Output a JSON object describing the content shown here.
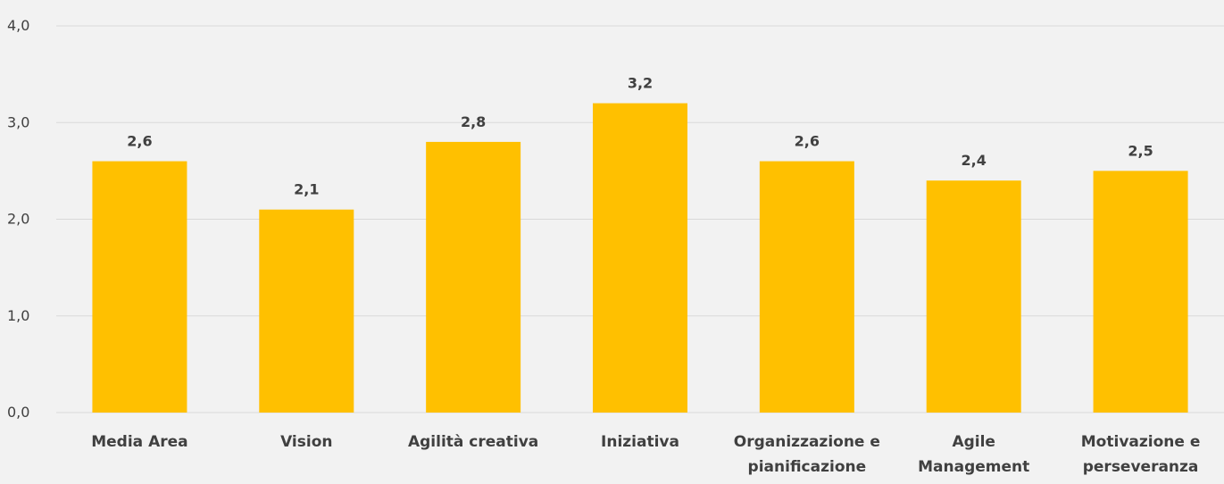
{
  "chart_data": {
    "type": "bar",
    "categories": [
      [
        "Media Area"
      ],
      [
        "Vision"
      ],
      [
        "Agilità creativa"
      ],
      [
        "Iniziativa"
      ],
      [
        "Organizzazione e",
        "pianificazione"
      ],
      [
        "Agile",
        "Management"
      ],
      [
        "Motivazione e",
        "perseveranza"
      ]
    ],
    "values": [
      2.6,
      2.1,
      2.8,
      3.2,
      2.6,
      2.4,
      2.5
    ],
    "value_labels": [
      "2,6",
      "2,1",
      "2,8",
      "3,2",
      "2,6",
      "2,4",
      "2,5"
    ],
    "title": "",
    "xlabel": "",
    "ylabel": "",
    "ylim": [
      0,
      4
    ],
    "yticks": [
      0,
      1,
      2,
      3,
      4
    ],
    "ytick_labels": [
      "0,0",
      "1,0",
      "2,0",
      "3,0",
      "4,0"
    ],
    "grid": true,
    "legend": "none",
    "colors": {
      "bar": "#ffc000",
      "background": "#f2f2f2",
      "grid": "#d9d9d9",
      "text": "#404040"
    }
  }
}
